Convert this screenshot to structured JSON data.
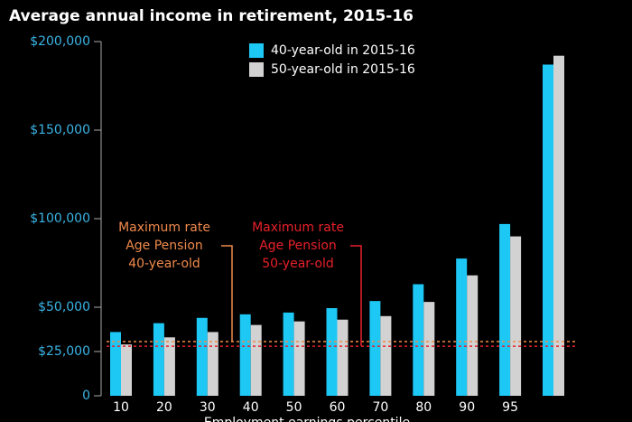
{
  "chart_data": {
    "type": "bar",
    "title": "Average annual income in retirement, 2015-16",
    "x_label": "Employment earnings percentile",
    "categories": [
      "10",
      "20",
      "30",
      "40",
      "50",
      "60",
      "70",
      "80",
      "90",
      "95",
      null
    ],
    "series": [
      {
        "name": "40-year-old in 2015-16",
        "color": "#1ec8f5",
        "values": [
          36000,
          41000,
          44000,
          46000,
          47000,
          49500,
          53500,
          63000,
          77500,
          97000,
          187000
        ]
      },
      {
        "name": "50-year-old in 2015-16",
        "color": "#d2d2d2",
        "values": [
          29000,
          33000,
          36000,
          40000,
          42000,
          43000,
          45000,
          53000,
          68000,
          90000,
          192000
        ]
      }
    ],
    "ylim": [
      0,
      200000
    ],
    "yticks": [
      0,
      {
        "value": 25000,
        "label": "$25,000"
      },
      {
        "value": 50000,
        "label": "$50,000"
      },
      {
        "value": 100000,
        "label": "$100,000"
      },
      {
        "value": 150000,
        "label": "$150,000"
      },
      {
        "value": 200000,
        "label": "$200,000"
      }
    ],
    "reference_lines": [
      {
        "label": [
          "Maximum rate",
          "Age Pension",
          "40-year-old"
        ],
        "value": 30600,
        "color": "#f08a4b"
      },
      {
        "label": [
          "Maximum rate",
          "Age Pension",
          "50-year-old"
        ],
        "value": 28000,
        "color": "#e8202a"
      }
    ]
  }
}
